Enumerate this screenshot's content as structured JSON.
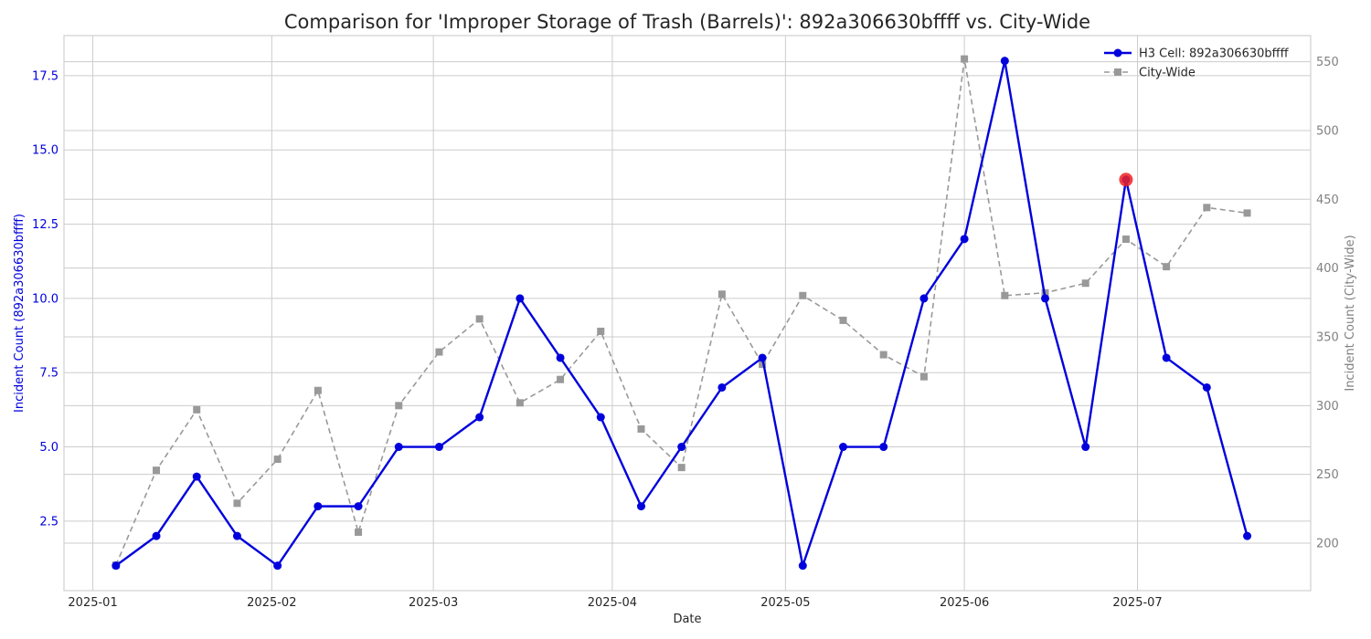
{
  "chart_data": {
    "type": "line",
    "title": "Comparison for 'Improper Storage of Trash (Barrels)': 892a306630bffff vs. City-Wide",
    "xlabel": "Date",
    "ylabel_left": "Incident Count (892a306630bffff)",
    "ylabel_right": "Incident Count (City-Wide)",
    "x_dates": [
      "2025-01-05",
      "2025-01-12",
      "2025-01-19",
      "2025-01-26",
      "2025-02-02",
      "2025-02-09",
      "2025-02-16",
      "2025-02-23",
      "2025-03-02",
      "2025-03-09",
      "2025-03-16",
      "2025-03-23",
      "2025-03-30",
      "2025-04-06",
      "2025-04-13",
      "2025-04-20",
      "2025-04-27",
      "2025-05-04",
      "2025-05-11",
      "2025-05-18",
      "2025-05-25",
      "2025-06-01",
      "2025-06-08",
      "2025-06-15",
      "2025-06-22",
      "2025-06-29",
      "2025-07-06",
      "2025-07-13",
      "2025-07-20"
    ],
    "x_tick_dates": [
      "2025-01-01",
      "2025-02-01",
      "2025-03-01",
      "2025-04-01",
      "2025-05-01",
      "2025-06-01",
      "2025-07-01"
    ],
    "x_tick_labels": [
      "2025-01",
      "2025-02",
      "2025-03",
      "2025-04",
      "2025-05",
      "2025-06",
      "2025-07"
    ],
    "xlim": [
      "2024-12-27",
      "2025-07-31"
    ],
    "left_axis": {
      "ylim": [
        0.16,
        18.85
      ],
      "ticks": [
        2.5,
        5.0,
        7.5,
        10.0,
        12.5,
        15.0,
        17.5
      ],
      "tick_labels": [
        "2.5",
        "5.0",
        "7.5",
        "10.0",
        "12.5",
        "15.0",
        "17.5"
      ],
      "color": "#0000dd"
    },
    "right_axis": {
      "ylim": [
        165.5,
        569
      ],
      "ticks": [
        200,
        250,
        300,
        350,
        400,
        450,
        500,
        550
      ],
      "tick_labels": [
        "200",
        "250",
        "300",
        "350",
        "400",
        "450",
        "500",
        "550"
      ],
      "color": "#808080"
    },
    "series": [
      {
        "name": "H3 Cell: 892a306630bffff",
        "axis": "left",
        "color": "#0000dd",
        "marker": "circle",
        "line_style": "solid",
        "values": [
          1,
          2,
          4,
          2,
          1,
          3,
          3,
          5,
          5,
          6,
          10,
          8,
          6,
          3,
          5,
          7,
          8,
          1,
          5,
          5,
          10,
          12,
          18,
          10,
          5,
          14,
          8,
          7,
          2
        ]
      },
      {
        "name": "City-Wide",
        "axis": "right",
        "color": "#999999",
        "marker": "square",
        "line_style": "dashed",
        "values": [
          184,
          253,
          297,
          229,
          261,
          311,
          208,
          300,
          339,
          363,
          302,
          319,
          354,
          283,
          255,
          381,
          330,
          380,
          362,
          337,
          321,
          552,
          380,
          382,
          389,
          421,
          401,
          444,
          440
        ]
      }
    ],
    "highlight": {
      "date": "2025-06-29",
      "value": 14,
      "series": "H3 Cell: 892a306630bffff",
      "color": "#ee2222"
    },
    "legend": {
      "position": "top-right",
      "entries": [
        "H3 Cell: 892a306630bffff",
        "City-Wide"
      ]
    },
    "grid": true
  }
}
